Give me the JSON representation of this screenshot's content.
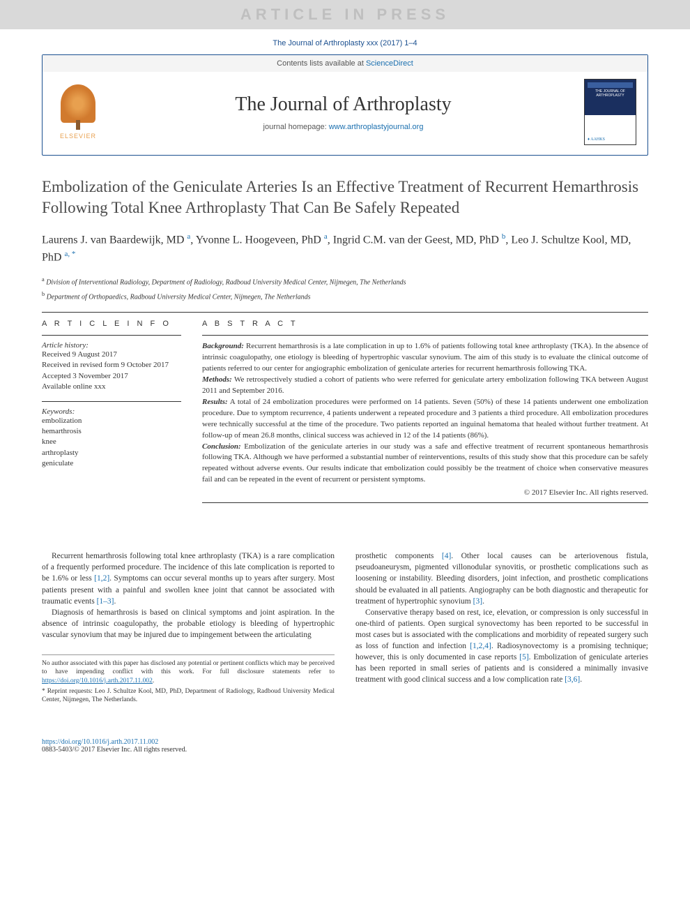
{
  "banner": "ARTICLE IN PRESS",
  "citation": "The Journal of Arthroplasty xxx (2017) 1–4",
  "header": {
    "contents_prefix": "Contents lists available at ",
    "contents_link": "ScienceDirect",
    "journal_name": "The Journal of Arthroplasty",
    "homepage_prefix": "journal homepage: ",
    "homepage_link": "www.arthroplastyjournal.org",
    "publisher": "ELSEVIER",
    "cover_text": "THE JOURNAL OF ARTHROPLASTY",
    "cover_logo": "♦ AAHKS"
  },
  "title": "Embolization of the Geniculate Arteries Is an Effective Treatment of Recurrent Hemarthrosis Following Total Knee Arthroplasty That Can Be Safely Repeated",
  "authors_html": "Laurens J. van Baardewijk, MD <sup>a</sup>, Yvonne L. Hoogeveen, PhD <sup>a</sup>, Ingrid C.M. van der Geest, MD, PhD <sup>b</sup>, Leo J. Schultze Kool, MD, PhD <sup>a, *</sup>",
  "affiliations": {
    "a": "Division of Interventional Radiology, Department of Radiology, Radboud University Medical Center, Nijmegen, The Netherlands",
    "b": "Department of Orthopaedics, Radboud University Medical Center, Nijmegen, The Netherlands"
  },
  "info": {
    "heading": "A R T I C L E   I N F O",
    "history_label": "Article history:",
    "received": "Received 9 August 2017",
    "revised": "Received in revised form 9 October 2017",
    "accepted": "Accepted 3 November 2017",
    "online": "Available online xxx",
    "keywords_label": "Keywords:",
    "keywords": [
      "embolization",
      "hemarthrosis",
      "knee",
      "arthroplasty",
      "geniculate"
    ]
  },
  "abstract": {
    "heading": "A B S T R A C T",
    "background": "Recurrent hemarthrosis is a late complication in up to 1.6% of patients following total knee arthroplasty (TKA). In the absence of intrinsic coagulopathy, one etiology is bleeding of hypertrophic vascular synovium. The aim of this study is to evaluate the clinical outcome of patients referred to our center for angiographic embolization of geniculate arteries for recurrent hemarthrosis following TKA.",
    "methods": "We retrospectively studied a cohort of patients who were referred for geniculate artery embolization following TKA between August 2011 and September 2016.",
    "results": "A total of 24 embolization procedures were performed on 14 patients. Seven (50%) of these 14 patients underwent one embolization procedure. Due to symptom recurrence, 4 patients underwent a repeated procedure and 3 patients a third procedure. All embolization procedures were technically successful at the time of the procedure. Two patients reported an inguinal hematoma that healed without further treatment. At follow-up of mean 26.8 months, clinical success was achieved in 12 of the 14 patients (86%).",
    "conclusion": "Embolization of the geniculate arteries in our study was a safe and effective treatment of recurrent spontaneous hemarthrosis following TKA. Although we have performed a substantial number of reinterventions, results of this study show that this procedure can be safely repeated without adverse events. Our results indicate that embolization could possibly be the treatment of choice when conservative measures fail and can be repeated in the event of recurrent or persistent symptoms.",
    "copyright": "© 2017 Elsevier Inc. All rights reserved."
  },
  "body": {
    "p1": "Recurrent hemarthrosis following total knee arthroplasty (TKA) is a rare complication of a frequently performed procedure. The incidence of this late complication is reported to be 1.6% or less ",
    "p1_ref": "[1,2]",
    "p1_cont": ". Symptoms can occur several months up to years after surgery. Most patients present with a painful and swollen knee joint that cannot be associated with traumatic events ",
    "p1_ref2": "[1–3]",
    "p1_end": ".",
    "p2": "Diagnosis of hemarthrosis is based on clinical symptoms and joint aspiration. In the absence of intrinsic coagulopathy, the probable etiology is bleeding of hypertrophic vascular synovium that may be injured due to impingement between the articulating",
    "p3a": "prosthetic components ",
    "p3_ref1": "[4]",
    "p3b": ". Other local causes can be arteriovenous fistula, pseudoaneurysm, pigmented villonodular synovitis, or prosthetic complications such as loosening or instability. Bleeding disorders, joint infection, and prosthetic complications should be evaluated in all patients. Angiography can be both diagnostic and therapeutic for treatment of hypertrophic synovium ",
    "p3_ref2": "[3]",
    "p3c": ".",
    "p4a": "Conservative therapy based on rest, ice, elevation, or compression is only successful in one-third of patients. Open surgical synovectomy has been reported to be successful in most cases but is associated with the complications and morbidity of repeated surgery such as loss of function and infection ",
    "p4_ref1": "[1,2,4]",
    "p4b": ". Radiosynovectomy is a promising technique; however, this is only documented in case reports ",
    "p4_ref2": "[5]",
    "p4c": ". Embolization of geniculate arteries has been reported in small series of patients and is considered a minimally invasive treatment with good clinical success and a low complication rate ",
    "p4_ref3": "[3,6]",
    "p4d": "."
  },
  "footnotes": {
    "conflict": "No author associated with this paper has disclosed any potential or pertinent conflicts which may be perceived to have impending conflict with this work. For full disclosure statements refer to ",
    "conflict_link": "https://doi.org/10.1016/j.arth.2017.11.002",
    "reprint": "* Reprint requests: Leo J. Schultze Kool, MD, PhD, Department of Radiology, Radboud University Medical Center, Nijmegen, The Netherlands."
  },
  "footer": {
    "doi": "https://doi.org/10.1016/j.arth.2017.11.002",
    "issn": "0883-5403/© 2017 Elsevier Inc. All rights reserved."
  }
}
